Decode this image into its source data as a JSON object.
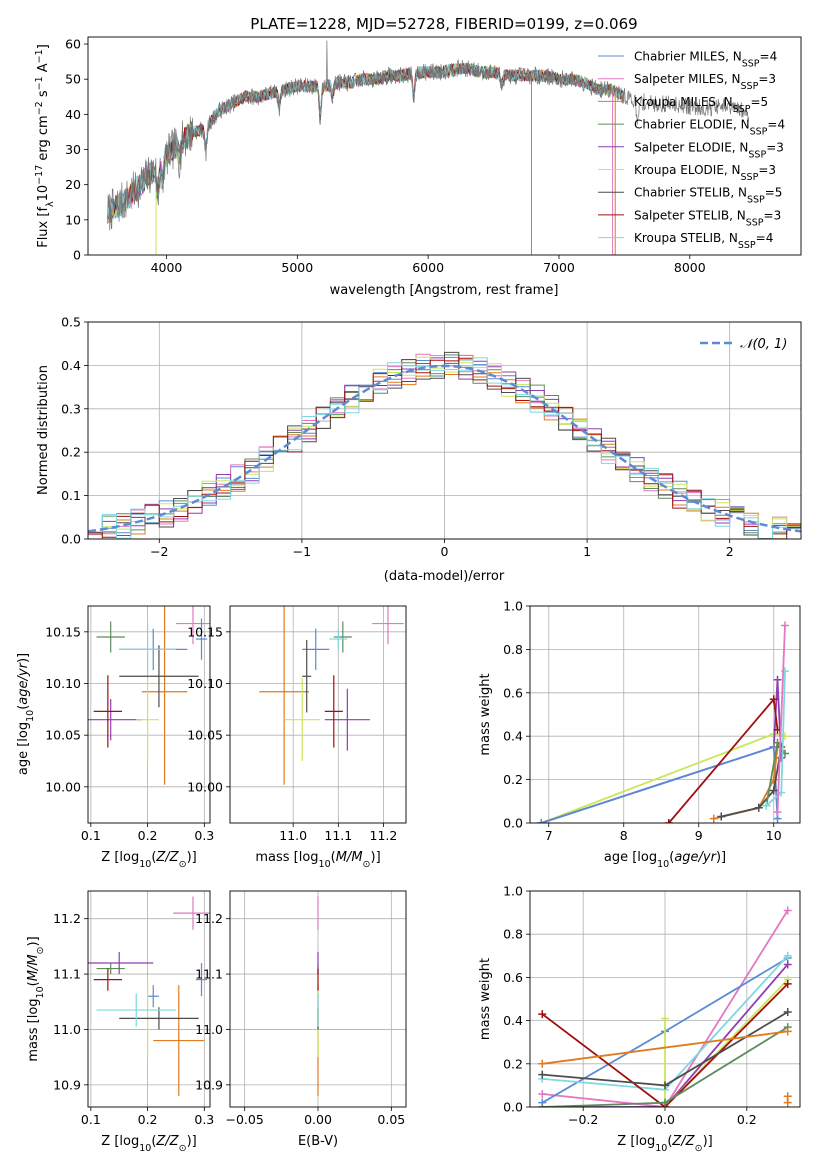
{
  "colors": {
    "chabrier_miles": "#5b8bd4",
    "salpeter_miles": "#e377c2",
    "kroupa_miles": "#e07b1f",
    "chabrier_elodie": "#5e8c5e",
    "salpeter_elodie": "#8e3fb0",
    "kroupa_elodie": "#c8e85a",
    "chabrier_stelib": "#4d4d4d",
    "salpeter_stelib": "#a01010",
    "kroupa_stelib": "#7fd7e0",
    "normal": "#5b8bd4",
    "spectrum": "#777777"
  },
  "chart_data": [
    {
      "type": "line",
      "id": "spectrum",
      "title": "PLATE=1228, MJD=52728, FIBERID=0199, z=0.069",
      "xlabel": "wavelength [Angstrom, rest frame]",
      "ylabel": "Flux [fλ10⁻¹⁷ erg cm⁻² s⁻¹ A⁻¹]",
      "xlim": [
        3400,
        8850
      ],
      "ylim": [
        0,
        62
      ],
      "xticks": [
        4000,
        5000,
        6000,
        7000,
        8000
      ],
      "yticks": [
        0,
        10,
        20,
        30,
        40,
        50,
        60
      ],
      "legend": "right",
      "series": [
        {
          "name": "Chabrier MILES, N_SSP=4",
          "color_key": "chabrier_miles"
        },
        {
          "name": "Salpeter MILES, N_SSP=3",
          "color_key": "salpeter_miles"
        },
        {
          "name": "Kroupa MILES, N_SSP=5",
          "color_key": "kroupa_miles"
        },
        {
          "name": "Chabrier ELODIE, N_SSP=4",
          "color_key": "chabrier_elodie"
        },
        {
          "name": "Salpeter ELODIE, N_SSP=3",
          "color_key": "salpeter_elodie"
        },
        {
          "name": "Kroupa ELODIE, N_SSP=3",
          "color_key": "kroupa_elodie"
        },
        {
          "name": "Chabrier STELIB, N_SSP=5",
          "color_key": "chabrier_stelib"
        },
        {
          "name": "Salpeter STELIB, N_SSP=3",
          "color_key": "salpeter_stelib"
        },
        {
          "name": "Kroupa STELIB, N_SSP=4",
          "color_key": "kroupa_stelib"
        }
      ],
      "continuum": [
        [
          3550,
          12
        ],
        [
          3700,
          16
        ],
        [
          3850,
          22
        ],
        [
          3950,
          26
        ],
        [
          4000,
          28
        ],
        [
          4100,
          32
        ],
        [
          4200,
          35
        ],
        [
          4300,
          36
        ],
        [
          4400,
          41
        ],
        [
          4500,
          43
        ],
        [
          4600,
          45
        ],
        [
          4700,
          45
        ],
        [
          4800,
          46
        ],
        [
          4900,
          47
        ],
        [
          5000,
          48
        ],
        [
          5100,
          48
        ],
        [
          5200,
          48
        ],
        [
          5300,
          49
        ],
        [
          5400,
          49
        ],
        [
          5500,
          50
        ],
        [
          5600,
          50
        ],
        [
          5700,
          51
        ],
        [
          5800,
          51
        ],
        [
          5900,
          52
        ],
        [
          6000,
          52
        ],
        [
          6100,
          52
        ],
        [
          6200,
          53
        ],
        [
          6300,
          53
        ],
        [
          6400,
          52
        ],
        [
          6500,
          52
        ],
        [
          6600,
          51
        ],
        [
          6700,
          51
        ],
        [
          6800,
          51
        ],
        [
          6900,
          51
        ],
        [
          7000,
          50
        ],
        [
          7100,
          50
        ],
        [
          7200,
          49
        ],
        [
          7300,
          47
        ],
        [
          7400,
          47
        ],
        [
          7500,
          45
        ],
        [
          7600,
          44
        ],
        [
          7700,
          43
        ],
        [
          7800,
          43
        ],
        [
          7900,
          43
        ],
        [
          8000,
          42
        ],
        [
          8100,
          42
        ],
        [
          8200,
          42
        ],
        [
          8300,
          42
        ],
        [
          8400,
          41
        ],
        [
          8450,
          40
        ]
      ],
      "absorptions": [
        [
          3934,
          8
        ],
        [
          3969,
          6
        ],
        [
          4102,
          4
        ],
        [
          4300,
          6
        ],
        [
          4861,
          4
        ],
        [
          5175,
          8
        ],
        [
          5270,
          3
        ],
        [
          5890,
          7
        ],
        [
          6563,
          3
        ],
        [
          7600,
          6
        ]
      ],
      "spike": [
        5225,
        61
      ]
    },
    {
      "type": "bar",
      "id": "residuals",
      "xlabel": "(data-model)/error",
      "ylabel": "Normed distribution",
      "xlim": [
        -2.5,
        2.5
      ],
      "ylim": [
        0,
        0.5
      ],
      "xticks": [
        -2,
        -1,
        0,
        1,
        2
      ],
      "yticks": [
        0.0,
        0.1,
        0.2,
        0.3,
        0.4,
        0.5
      ],
      "legend_label": "𝒩(0, 1)",
      "legend": "upper right",
      "bin_width": 0.1,
      "grid": true
    },
    {
      "type": "scatter",
      "id": "age_vs_z",
      "xlabel": "Z [log10(Z/Z⊙)]",
      "ylabel": "age  [log10(age/yr)]",
      "xlim": [
        0.095,
        0.31
      ],
      "ylim": [
        9.965,
        10.175
      ],
      "xticks": [
        0.1,
        0.2,
        0.3
      ],
      "yticks": [
        10.0,
        10.05,
        10.1,
        10.15
      ],
      "points": [
        {
          "c": "chabrier_miles",
          "x": 0.21,
          "xe": 0.06,
          "y": 10.133,
          "ye": 0.02
        },
        {
          "c": "salpeter_miles",
          "x": 0.28,
          "xe": 0.03,
          "y": 10.158,
          "ye": 0.02
        },
        {
          "c": "kroupa_miles",
          "x": 0.23,
          "xe": 0.04,
          "y": 10.092,
          "ye": 0.09
        },
        {
          "c": "chabrier_elodie",
          "x": 0.135,
          "xe": 0.025,
          "y": 10.145,
          "ye": 0.015
        },
        {
          "c": "salpeter_elodie",
          "x": 0.135,
          "xe": 0.055,
          "y": 10.065,
          "ye": 0.02
        },
        {
          "c": "kroupa_elodie",
          "x": 0.2,
          "xe": 0.02,
          "y": 10.065,
          "ye": 0.04
        },
        {
          "c": "chabrier_stelib",
          "x": 0.22,
          "xe": 0.07,
          "y": 10.107,
          "ye": 0.03
        },
        {
          "c": "salpeter_stelib",
          "x": 0.13,
          "xe": 0.025,
          "y": 10.073,
          "ye": 0.035
        },
        {
          "c": "kroupa_stelib",
          "x": 0.2,
          "xe": 0.05,
          "y": 10.133,
          "ye": 0.025
        },
        {
          "c": "chabrier_miles",
          "x": 0.295,
          "xe": 0.01,
          "y": 10.143,
          "ye": 0.02
        }
      ]
    },
    {
      "type": "scatter",
      "id": "age_vs_mass",
      "xlabel": "mass [log10(M/M⊙)]",
      "ylabel": "",
      "xlim": [
        10.86,
        11.25
      ],
      "ylim": [
        9.965,
        10.175
      ],
      "xticks": [
        11.0,
        11.1,
        11.2
      ],
      "yticks": [
        10.0,
        10.05,
        10.1,
        10.15
      ],
      "points": [
        {
          "c": "chabrier_miles",
          "x": 11.05,
          "xe": 0.03,
          "y": 10.133,
          "ye": 0.02
        },
        {
          "c": "salpeter_miles",
          "x": 11.21,
          "xe": 0.035,
          "y": 10.158,
          "ye": 0.02
        },
        {
          "c": "kroupa_miles",
          "x": 10.98,
          "xe": 0.055,
          "y": 10.092,
          "ye": 0.09
        },
        {
          "c": "chabrier_elodie",
          "x": 11.11,
          "xe": 0.02,
          "y": 10.145,
          "ye": 0.015
        },
        {
          "c": "salpeter_elodie",
          "x": 11.12,
          "xe": 0.05,
          "y": 10.065,
          "ye": 0.03
        },
        {
          "c": "kroupa_elodie",
          "x": 11.02,
          "xe": 0.04,
          "y": 10.065,
          "ye": 0.04
        },
        {
          "c": "chabrier_stelib",
          "x": 11.03,
          "xe": 0.01,
          "y": 10.107,
          "ye": 0.035
        },
        {
          "c": "salpeter_stelib",
          "x": 11.09,
          "xe": 0.02,
          "y": 10.073,
          "ye": 0.035
        },
        {
          "c": "kroupa_stelib",
          "x": 11.1,
          "xe": 0.02,
          "y": 10.143,
          "ye": 0.01
        }
      ]
    },
    {
      "type": "line",
      "id": "weight_vs_age",
      "xlabel": "age  [log10(age/yr)]",
      "ylabel": "mass weight",
      "xlim": [
        6.75,
        10.35
      ],
      "ylim": [
        0,
        1.0
      ],
      "xticks": [
        7,
        8,
        9,
        10
      ],
      "yticks": [
        0.0,
        0.2,
        0.4,
        0.6,
        0.8,
        1.0
      ],
      "series": [
        {
          "c": "kroupa_elodie",
          "pts": [
            [
              6.9,
              0.0
            ],
            [
              10.0,
              0.41
            ],
            [
              10.15,
              0.4
            ]
          ]
        },
        {
          "c": "salpeter_elodie",
          "pts": [
            [
              6.9,
              0.0
            ],
            [
              10.0,
              0.35
            ],
            [
              10.05,
              0.66
            ],
            [
              10.1,
              0.3
            ]
          ]
        },
        {
          "c": "chabrier_miles",
          "pts": [
            [
              6.9,
              0.0
            ],
            [
              10.0,
              0.35
            ],
            [
              10.05,
              0.02
            ]
          ]
        },
        {
          "c": "salpeter_stelib",
          "pts": [
            [
              8.6,
              0.0
            ],
            [
              10.0,
              0.57
            ],
            [
              10.05,
              0.43
            ]
          ]
        },
        {
          "c": "kroupa_miles",
          "pts": [
            [
              9.2,
              0.02
            ],
            [
              9.8,
              0.07
            ],
            [
              10.0,
              0.2
            ],
            [
              10.05,
              0.35
            ]
          ]
        },
        {
          "c": "chabrier_stelib",
          "pts": [
            [
              9.3,
              0.03
            ],
            [
              9.8,
              0.07
            ],
            [
              10.0,
              0.15
            ],
            [
              10.1,
              0.35
            ]
          ]
        },
        {
          "c": "chabrier_elodie",
          "pts": [
            [
              9.9,
              0.08
            ],
            [
              10.05,
              0.37
            ],
            [
              10.15,
              0.32
            ]
          ]
        },
        {
          "c": "kroupa_stelib",
          "pts": [
            [
              9.9,
              0.08
            ],
            [
              10.1,
              0.14
            ],
            [
              10.15,
              0.7
            ]
          ]
        },
        {
          "c": "salpeter_miles",
          "pts": [
            [
              10.05,
              0.05
            ],
            [
              10.15,
              0.91
            ]
          ]
        }
      ]
    },
    {
      "type": "scatter",
      "id": "mass_vs_z",
      "xlabel": "Z [log10(Z/Z⊙)]",
      "ylabel": "mass [log10(M/M⊙)]",
      "xlim": [
        0.095,
        0.31
      ],
      "ylim": [
        10.86,
        11.25
      ],
      "xticks": [
        0.1,
        0.2,
        0.3
      ],
      "yticks": [
        10.9,
        11.0,
        11.1,
        11.2
      ],
      "points": [
        {
          "c": "chabrier_miles",
          "x": 0.21,
          "xe": 0.01,
          "y": 11.06,
          "ye": 0.02
        },
        {
          "c": "salpeter_miles",
          "x": 0.28,
          "xe": 0.035,
          "y": 11.21,
          "ye": 0.03
        },
        {
          "c": "kroupa_miles",
          "x": 0.255,
          "xe": 0.045,
          "y": 10.98,
          "ye": 0.1
        },
        {
          "c": "chabrier_elodie",
          "x": 0.135,
          "xe": 0.025,
          "y": 11.11,
          "ye": 0.01
        },
        {
          "c": "salpeter_elodie",
          "x": 0.15,
          "xe": 0.06,
          "y": 11.12,
          "ye": 0.02
        },
        {
          "c": "kroupa_elodie",
          "x": 0.2,
          "xe": 0.02,
          "y": 11.02,
          "ye": 0.07
        },
        {
          "c": "chabrier_stelib",
          "x": 0.22,
          "xe": 0.07,
          "y": 11.02,
          "ye": 0.02
        },
        {
          "c": "salpeter_stelib",
          "x": 0.13,
          "xe": 0.025,
          "y": 11.09,
          "ye": 0.02
        },
        {
          "c": "kroupa_stelib",
          "x": 0.18,
          "xe": 0.07,
          "y": 11.035,
          "ye": 0.03
        },
        {
          "c": "chabrier_miles",
          "x": 0.295,
          "xe": 0.01,
          "y": 11.09,
          "ye": 0.03
        }
      ]
    },
    {
      "type": "scatter",
      "id": "mass_vs_ebv",
      "xlabel": "E(B-V)",
      "ylabel": "",
      "xlim": [
        -0.06,
        0.06
      ],
      "ylim": [
        10.86,
        11.25
      ],
      "xticks": [
        -0.05,
        0.0,
        0.05
      ],
      "yticks": [
        10.9,
        11.0,
        11.1,
        11.2
      ],
      "points": [
        {
          "c": "salpeter_miles",
          "x": 0.0,
          "xe": 0,
          "y": 11.21,
          "ye": 0.03
        },
        {
          "c": "kroupa_miles",
          "x": 0.0,
          "xe": 0,
          "y": 10.98,
          "ye": 0.1
        },
        {
          "c": "kroupa_elodie",
          "x": 0.0,
          "xe": 0,
          "y": 11.02,
          "ye": 0.07
        },
        {
          "c": "chabrier_stelib",
          "x": 0.0,
          "xe": 0,
          "y": 11.02,
          "ye": 0.02
        },
        {
          "c": "kroupa_stelib",
          "x": 0.0,
          "xe": 0,
          "y": 11.035,
          "ye": 0.03
        },
        {
          "c": "chabrier_elodie",
          "x": 0.0,
          "xe": 0,
          "y": 11.11,
          "ye": 0.01
        },
        {
          "c": "salpeter_elodie",
          "x": 0.0,
          "xe": 0,
          "y": 11.12,
          "ye": 0.02
        },
        {
          "c": "salpeter_stelib",
          "x": 0.0,
          "xe": 0,
          "y": 11.09,
          "ye": 0.02
        }
      ]
    },
    {
      "type": "line",
      "id": "weight_vs_z",
      "xlabel": "Z [log10(Z/Z⊙)]",
      "ylabel": "mass weight",
      "xlim": [
        -0.33,
        0.33
      ],
      "ylim": [
        0,
        1.0
      ],
      "xticks": [
        -0.2,
        0.0,
        0.2
      ],
      "yticks": [
        0.0,
        0.2,
        0.4,
        0.6,
        0.8,
        1.0
      ],
      "series": [
        {
          "c": "salpeter_miles",
          "pts": [
            [
              -0.3,
              0.06
            ],
            [
              0.0,
              0.0
            ],
            [
              0.3,
              0.91
            ]
          ]
        },
        {
          "c": "chabrier_miles",
          "pts": [
            [
              -0.3,
              0.02
            ],
            [
              0.0,
              0.35
            ],
            [
              0.3,
              0.69
            ]
          ]
        },
        {
          "c": "kroupa_stelib",
          "pts": [
            [
              -0.3,
              0.13
            ],
            [
              0.0,
              0.08
            ],
            [
              0.3,
              0.7
            ]
          ]
        },
        {
          "c": "salpeter_elodie",
          "pts": [
            [
              -0.3,
              0.0
            ],
            [
              0.0,
              0.0
            ],
            [
              0.3,
              0.66
            ]
          ]
        },
        {
          "c": "kroupa_elodie",
          "pts": [
            [
              0.0,
              0.41
            ],
            [
              0.0,
              0.0
            ],
            [
              0.3,
              0.59
            ]
          ]
        },
        {
          "c": "salpeter_stelib",
          "pts": [
            [
              -0.3,
              0.43
            ],
            [
              0.0,
              0.0
            ],
            [
              0.3,
              0.57
            ]
          ]
        },
        {
          "c": "chabrier_stelib",
          "pts": [
            [
              -0.3,
              0.15
            ],
            [
              0.0,
              0.1
            ],
            [
              0.3,
              0.44
            ]
          ]
        },
        {
          "c": "chabrier_elodie",
          "pts": [
            [
              -0.3,
              0.0
            ],
            [
              0.0,
              0.02
            ],
            [
              0.3,
              0.37
            ]
          ]
        },
        {
          "c": "kroupa_miles",
          "pts": [
            [
              -0.3,
              0.2
            ],
            [
              0.3,
              0.35
            ]
          ]
        },
        {
          "c": "kroupa_miles",
          "pts": [
            [
              0.3,
              0.05
            ],
            [
              0.3,
              0.02
            ]
          ]
        }
      ]
    }
  ]
}
